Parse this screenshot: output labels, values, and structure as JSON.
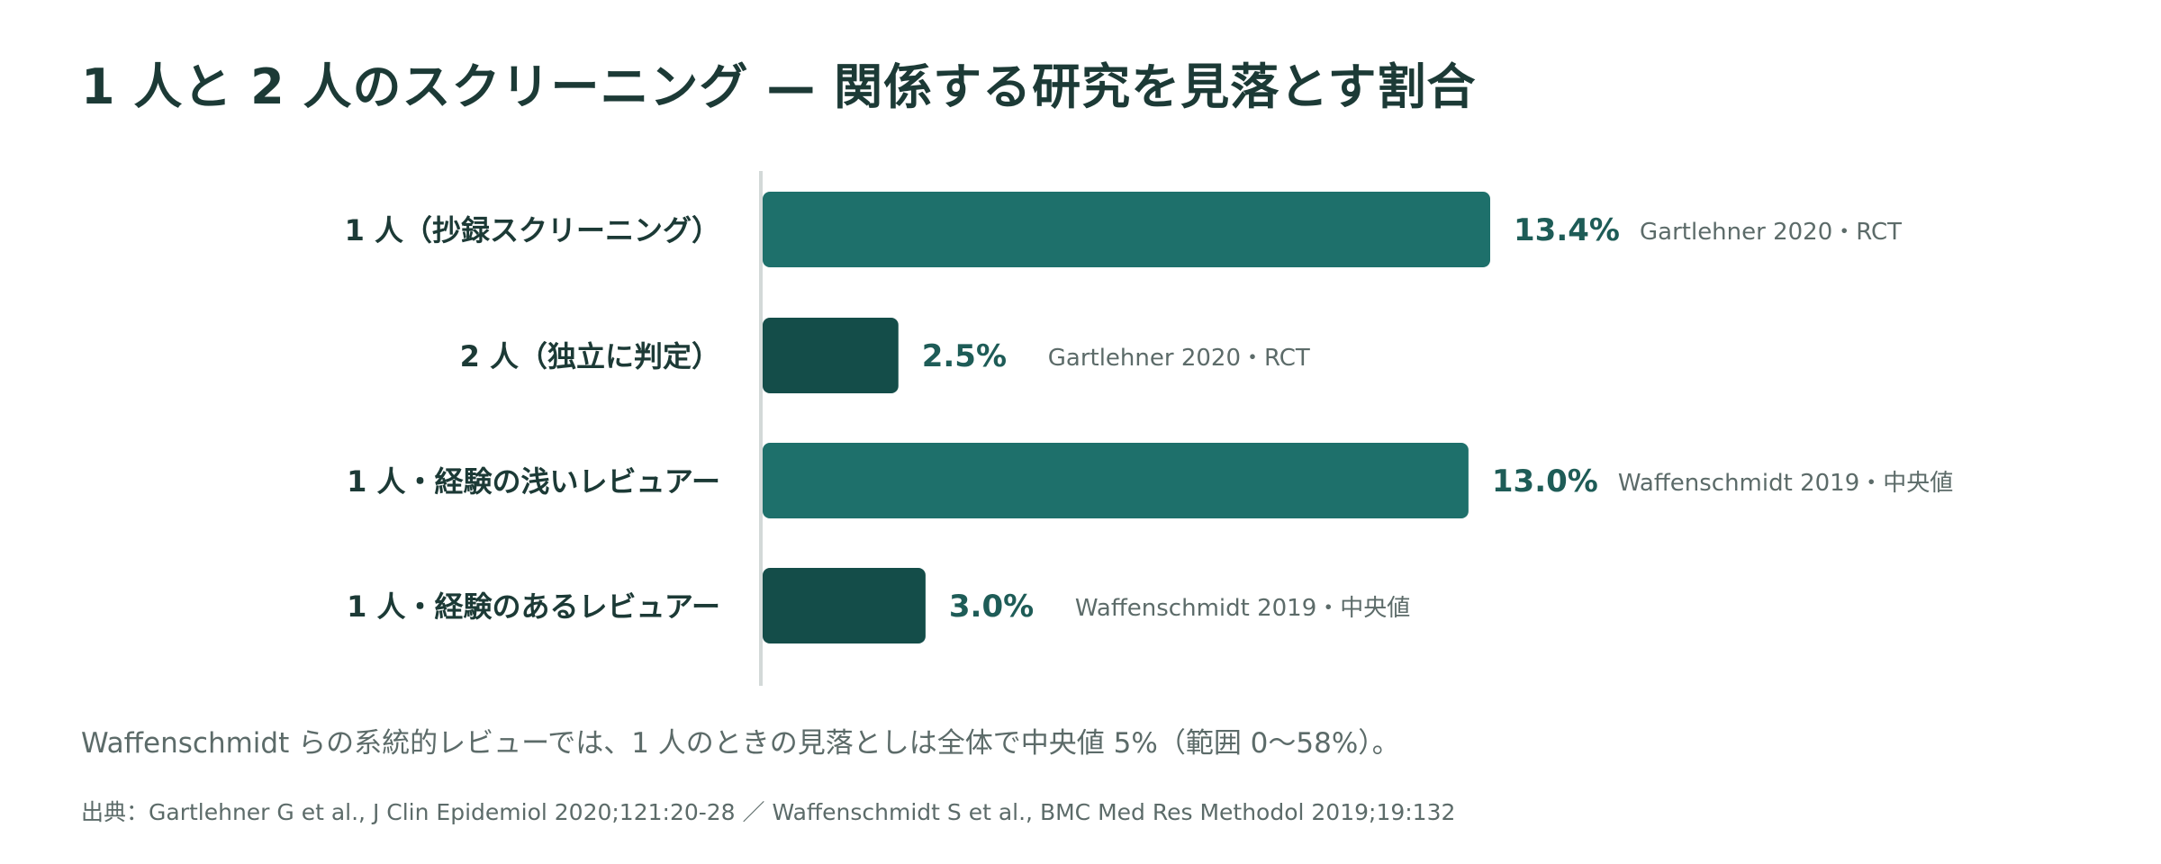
{
  "title": "1 人と 2 人のスクリーニング — 関係する研究を見落とす割合",
  "chart_data": {
    "type": "bar",
    "orientation": "horizontal",
    "categories": [
      "1 人（抄録スクリーニング）",
      "2 人（独立に判定）",
      "1 人・経験の浅いレビュアー",
      "1 人・経験のあるレビュアー"
    ],
    "values": [
      13.4,
      2.5,
      13.0,
      3.0
    ],
    "value_labels": [
      "13.4%",
      "2.5%",
      "13.0%",
      "3.0%"
    ],
    "sources": [
      "Gartlehner 2020・RCT",
      "Gartlehner 2020・RCT",
      "Waffenschmidt 2019・中央値",
      "Waffenschmidt 2019・中央値"
    ],
    "bar_colors": [
      "#1e706b",
      "#144d49",
      "#1e706b",
      "#144d49"
    ],
    "xlim": [
      0,
      13.4
    ],
    "grid": false,
    "legend": "none"
  },
  "note": "Waffenschmidt らの系統的レビューでは、1 人のときの見落としは全体で中央値 5%（範囲 0〜58%）。",
  "source": "出典：Gartlehner G et al., J Clin Epidemiol 2020;121:20-28 ／ Waffenschmidt S et al., BMC Med Res Methodol 2019;19:132",
  "colors": {
    "value_text": "#1e5c57",
    "axis": "#d3d9d8",
    "label": "#1c3a36",
    "source_text": "#5c6b69"
  }
}
